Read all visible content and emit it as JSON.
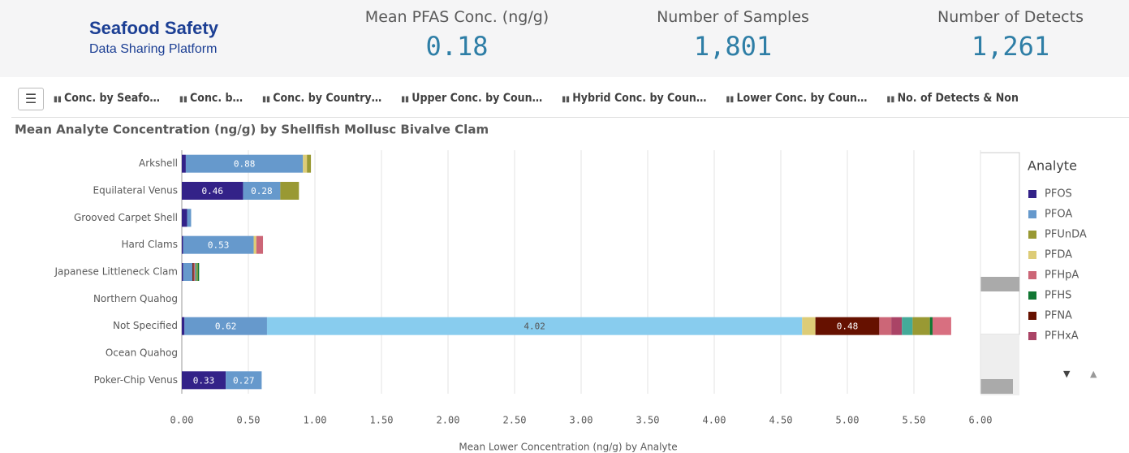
{
  "header": {
    "logo_title": "Seafood Safety",
    "logo_subtitle": "Data Sharing Platform",
    "kpis": [
      {
        "label": "Mean PFAS Conc. (ng/g)",
        "value": "0.18"
      },
      {
        "label": "Number of Samples",
        "value": "1,801"
      },
      {
        "label": "Number of Detects",
        "value": "1,261"
      }
    ]
  },
  "tabs": [
    "Conc. by Seafo…",
    "Conc. b…",
    "Conc. by Country…",
    "Upper Conc. by Coun…",
    "Hybrid Conc. by Coun…",
    "Lower Conc. by Coun…",
    "No. of Detects & Non"
  ],
  "chart_data": {
    "type": "bar",
    "orientation": "horizontal",
    "stacked": true,
    "title": "Mean Analyte Concentration (ng/g) by Shellfish Mollusc Bivalve Clam",
    "x_label": "Mean Lower Concentration (ng/g) by Analyte",
    "legend_title": "Analyte",
    "legend": "right",
    "categories": [
      "Arkshell",
      "Equilateral Venus",
      "Grooved Carpet Shell",
      "Hard Clams",
      "Japanese Littleneck Clam",
      "Northern Quahog",
      "Not Specified",
      "Ocean Quahog",
      "Poker-Chip Venus"
    ],
    "series": [
      {
        "name": "PFOS",
        "color": "#332288",
        "values": [
          0.03,
          0.46,
          0.04,
          0.01,
          0.01,
          0,
          0.02,
          0,
          0.33
        ]
      },
      {
        "name": "PFOA",
        "color": "#6699cc",
        "values": [
          0.88,
          0.28,
          0.03,
          0.53,
          0.07,
          0,
          0.62,
          0,
          0.27
        ]
      },
      {
        "color": "#88ccee",
        "values": [
          0,
          0,
          0,
          0,
          0,
          0,
          4.02,
          0,
          0
        ]
      },
      {
        "name": "PFDA",
        "color": "#ddcc77",
        "values": [
          0.03,
          0,
          0,
          0.02,
          0,
          0,
          0.1,
          0,
          0
        ]
      },
      {
        "name": "PFNA",
        "color": "#661100",
        "values": [
          0,
          0,
          0,
          0,
          0.01,
          0,
          0.48,
          0,
          0
        ]
      },
      {
        "name": "PFHpA",
        "color": "#cc6677",
        "values": [
          0,
          0,
          0,
          0.05,
          0.01,
          0,
          0.09,
          0,
          0
        ]
      },
      {
        "name": "PFHxA",
        "color": "#aa4466",
        "values": [
          0,
          0,
          0,
          0,
          0,
          0,
          0.08,
          0,
          0
        ]
      },
      {
        "color": "#44aa99",
        "values": [
          0,
          0,
          0,
          0,
          0.01,
          0,
          0.08,
          0,
          0
        ]
      },
      {
        "name": "PFUnDA",
        "color": "#999933",
        "values": [
          0.03,
          0.14,
          0,
          0,
          0.01,
          0,
          0.13,
          0,
          0
        ]
      },
      {
        "name": "PFHS",
        "color": "#117733",
        "values": [
          0,
          0,
          0,
          0,
          0.01,
          0,
          0.02,
          0,
          0
        ]
      },
      {
        "color": "#d86f80",
        "values": [
          0,
          0,
          0,
          0,
          0,
          0,
          0.14,
          0,
          0
        ]
      }
    ],
    "legend_order": [
      "PFOS",
      "PFOA",
      "PFUnDA",
      "PFDA",
      "PFHpA",
      "PFHS",
      "PFNA",
      "PFHxA"
    ],
    "xlim": [
      0,
      6.2
    ],
    "xticks": [
      {
        "value": 0,
        "label": "0.00"
      },
      {
        "value": 0.5,
        "label": "0.50"
      },
      {
        "value": 1,
        "label": "1.00"
      },
      {
        "value": 1.5,
        "label": "1.50"
      },
      {
        "value": 2,
        "label": "2.00"
      },
      {
        "value": 2.5,
        "label": "2.50"
      },
      {
        "value": 3,
        "label": "3.00"
      },
      {
        "value": 3.5,
        "label": "3.50"
      },
      {
        "value": 4,
        "label": "4.00"
      },
      {
        "value": 4.5,
        "label": "4.50"
      },
      {
        "value": 5,
        "label": "5.00"
      },
      {
        "value": 5.5,
        "label": "5.50"
      },
      {
        "value": 6,
        "label": "6.00"
      }
    ],
    "grid": true
  }
}
